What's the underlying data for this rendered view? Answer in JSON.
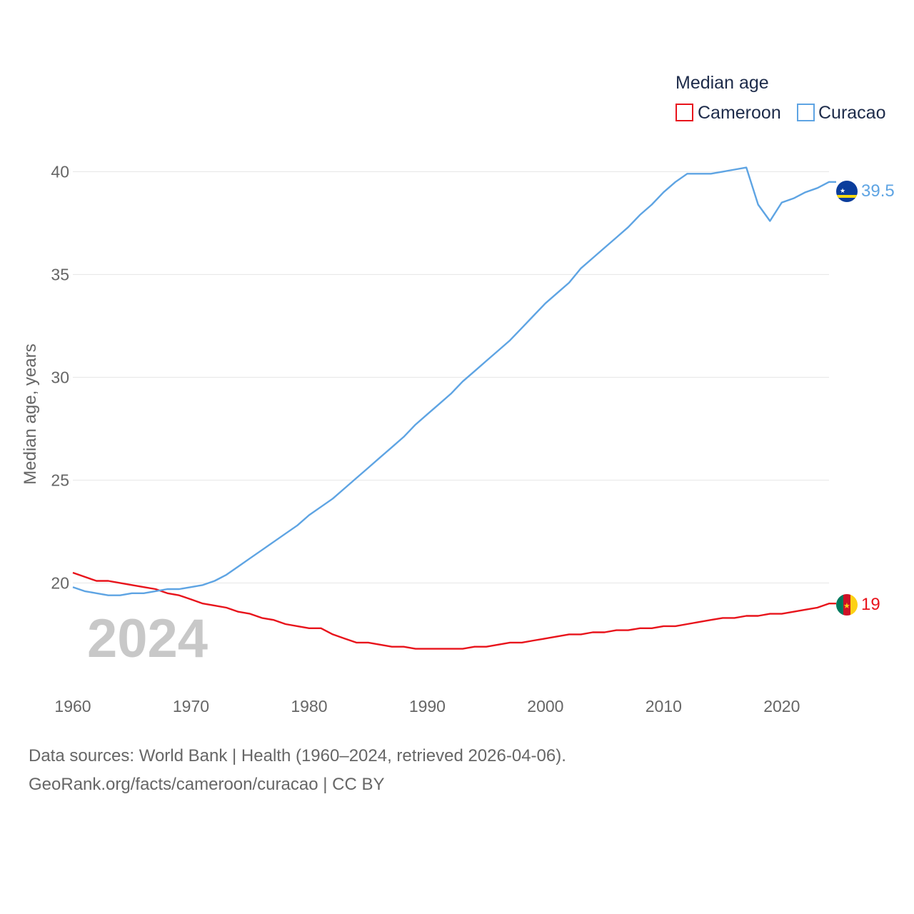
{
  "colors": {
    "cameroon": "#e8131b",
    "curacao": "#5ea4e3",
    "grid": "#e6e6e6",
    "text": "#666666"
  },
  "chart_data": {
    "type": "line",
    "title": "Median age",
    "ylabel": "Median age, years",
    "xlabel": "",
    "xlim": [
      1960,
      2024
    ],
    "ylim": [
      15.5,
      40.5
    ],
    "xticks": [
      1960,
      1970,
      1980,
      1990,
      2000,
      2010,
      2020
    ],
    "yticks": [
      20,
      25,
      30,
      35,
      40
    ],
    "grid": true,
    "legend_position": "top-right",
    "year_label": "2024",
    "x": [
      1960,
      1961,
      1962,
      1963,
      1964,
      1965,
      1966,
      1967,
      1968,
      1969,
      1970,
      1971,
      1972,
      1973,
      1974,
      1975,
      1976,
      1977,
      1978,
      1979,
      1980,
      1981,
      1982,
      1983,
      1984,
      1985,
      1986,
      1987,
      1988,
      1989,
      1990,
      1991,
      1992,
      1993,
      1994,
      1995,
      1996,
      1997,
      1998,
      1999,
      2000,
      2001,
      2002,
      2003,
      2004,
      2005,
      2006,
      2007,
      2008,
      2009,
      2010,
      2011,
      2012,
      2013,
      2014,
      2015,
      2016,
      2017,
      2018,
      2019,
      2020,
      2021,
      2022,
      2023,
      2024
    ],
    "series": [
      {
        "name": "Cameroon",
        "color": "#e8131b",
        "end_label": "19",
        "values": [
          20.5,
          20.3,
          20.1,
          20.1,
          20.0,
          19.9,
          19.8,
          19.7,
          19.5,
          19.4,
          19.2,
          19.0,
          18.9,
          18.8,
          18.6,
          18.5,
          18.3,
          18.2,
          18.0,
          17.9,
          17.8,
          17.8,
          17.5,
          17.3,
          17.1,
          17.1,
          17.0,
          16.9,
          16.9,
          16.8,
          16.8,
          16.8,
          16.8,
          16.8,
          16.9,
          16.9,
          17.0,
          17.1,
          17.1,
          17.2,
          17.3,
          17.4,
          17.5,
          17.5,
          17.6,
          17.6,
          17.7,
          17.7,
          17.8,
          17.8,
          17.9,
          17.9,
          18.0,
          18.1,
          18.2,
          18.3,
          18.3,
          18.4,
          18.4,
          18.5,
          18.5,
          18.6,
          18.7,
          18.8,
          19.0
        ]
      },
      {
        "name": "Curacao",
        "color": "#5ea4e3",
        "end_label": "39.5",
        "values": [
          19.8,
          19.6,
          19.5,
          19.4,
          19.4,
          19.5,
          19.5,
          19.6,
          19.7,
          19.7,
          19.8,
          19.9,
          20.1,
          20.4,
          20.8,
          21.2,
          21.6,
          22.0,
          22.4,
          22.8,
          23.3,
          23.7,
          24.1,
          24.6,
          25.1,
          25.6,
          26.1,
          26.6,
          27.1,
          27.7,
          28.2,
          28.7,
          29.2,
          29.8,
          30.3,
          30.8,
          31.3,
          31.8,
          32.4,
          33.0,
          33.6,
          34.1,
          34.6,
          35.3,
          35.8,
          36.3,
          36.8,
          37.3,
          37.9,
          38.4,
          39.0,
          39.5,
          39.9,
          39.9,
          39.9,
          40.0,
          40.1,
          40.2,
          38.4,
          37.6,
          38.5,
          38.7,
          39.0,
          39.2,
          39.5
        ]
      }
    ]
  },
  "footer": {
    "source_line": "Data sources: World Bank | Health (1960–2024, retrieved 2026-04-06).",
    "credit_line": "GeoRank.org/facts/cameroon/curacao | CC BY"
  }
}
